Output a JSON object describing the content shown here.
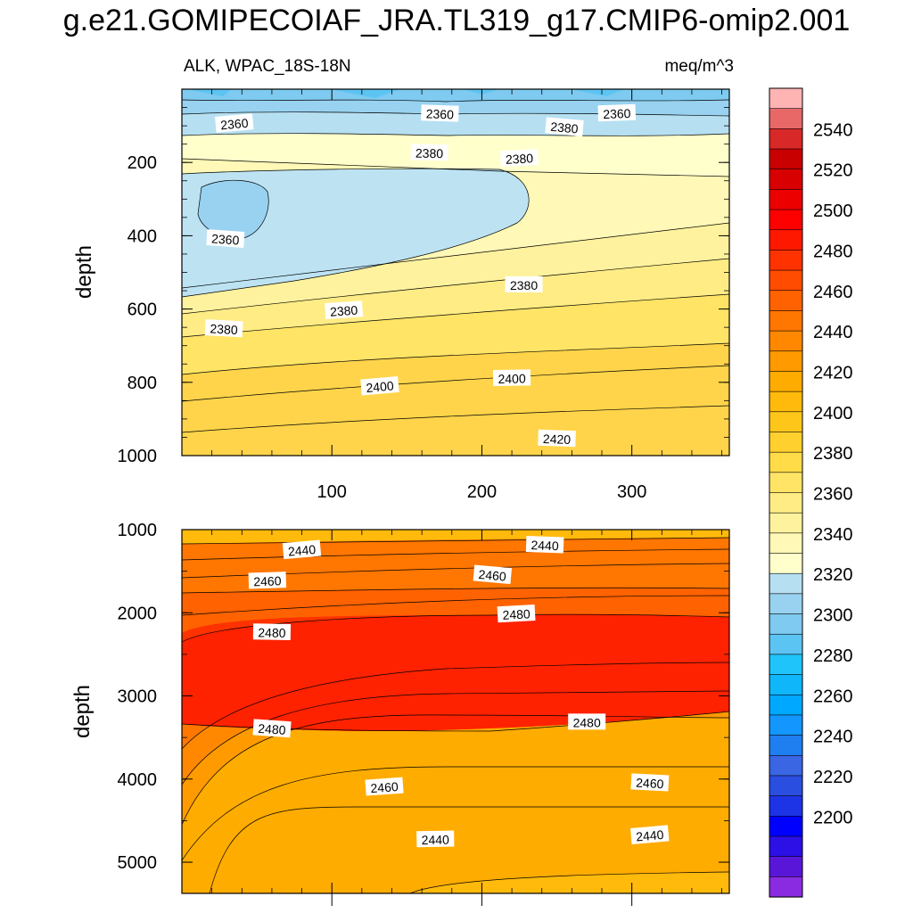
{
  "title": "g.e21.GOMIPECOIAF_JRA.TL319_g17.CMIP6-omip2.001",
  "subtitle_left": "ALK, WPAC_18S-18N",
  "subtitle_right": "meq/m^3",
  "chart_data": [
    {
      "type": "contour",
      "panel": "upper",
      "variable": "ALK",
      "region": "WPAC_18S-18N",
      "units": "meq/m^3",
      "xlabel": "",
      "ylabel": "depth",
      "xlim": [
        0,
        365
      ],
      "ylim": [
        0,
        1000
      ],
      "y_inverted": true,
      "x_ticks": [
        100,
        200,
        300
      ],
      "y_ticks": [
        200,
        400,
        600,
        800,
        1000
      ],
      "contour_labels": [
        {
          "value": 2360,
          "x": 35,
          "depth": 95
        },
        {
          "value": 2360,
          "x": 172,
          "depth": 68
        },
        {
          "value": 2360,
          "x": 290,
          "depth": 67
        },
        {
          "value": 2380,
          "x": 255,
          "depth": 105
        },
        {
          "value": 2380,
          "x": 165,
          "depth": 175
        },
        {
          "value": 2380,
          "x": 225,
          "depth": 190
        },
        {
          "value": 2360,
          "x": 29,
          "depth": 410
        },
        {
          "value": 2380,
          "x": 228,
          "depth": 535
        },
        {
          "value": 2380,
          "x": 108,
          "depth": 605
        },
        {
          "value": 2380,
          "x": 28,
          "depth": 655
        },
        {
          "value": 2400,
          "x": 220,
          "depth": 790
        },
        {
          "value": 2400,
          "x": 132,
          "depth": 812
        },
        {
          "value": 2420,
          "x": 250,
          "depth": 955
        }
      ]
    },
    {
      "type": "contour",
      "panel": "lower",
      "variable": "ALK",
      "units": "meq/m^3",
      "xlabel": "",
      "ylabel": "depth",
      "xlim": [
        0,
        365
      ],
      "ylim": [
        1000,
        5375
      ],
      "y_inverted": true,
      "y_ticks": [
        1000,
        2000,
        3000,
        4000,
        5000
      ],
      "contour_labels": [
        {
          "value": 2440,
          "x": 80,
          "depth": 1250
        },
        {
          "value": 2440,
          "x": 242,
          "depth": 1190
        },
        {
          "value": 2460,
          "x": 57,
          "depth": 1620
        },
        {
          "value": 2460,
          "x": 207,
          "depth": 1550
        },
        {
          "value": 2480,
          "x": 60,
          "depth": 2240
        },
        {
          "value": 2480,
          "x": 223,
          "depth": 2020
        },
        {
          "value": 2480,
          "x": 60,
          "depth": 3400
        },
        {
          "value": 2480,
          "x": 270,
          "depth": 3320
        },
        {
          "value": 2460,
          "x": 135,
          "depth": 4100
        },
        {
          "value": 2460,
          "x": 312,
          "depth": 4050
        },
        {
          "value": 2440,
          "x": 169,
          "depth": 4730
        },
        {
          "value": 2440,
          "x": 312,
          "depth": 4680
        }
      ]
    }
  ],
  "colorbar": {
    "labels": [
      2200,
      2220,
      2240,
      2260,
      2280,
      2300,
      2320,
      2340,
      2360,
      2380,
      2400,
      2420,
      2440,
      2460,
      2480,
      2500,
      2520,
      2540
    ],
    "colors": [
      "#8a2be2",
      "#5a16d8",
      "#2c10e6",
      "#0000ff",
      "#1c34e6",
      "#2a4ee0",
      "#3a66e4",
      "#1f7ef0",
      "#1496ff",
      "#00a8ff",
      "#10b6fa",
      "#1ec4fa",
      "#5cc4f2",
      "#7ecaf0",
      "#98d2f0",
      "#b6e0f2",
      "#ffffcc",
      "#fff8b6",
      "#fff29e",
      "#ffec84",
      "#ffe466",
      "#ffdc48",
      "#ffd02e",
      "#ffc61a",
      "#ffba0c",
      "#ffac00",
      "#ff9a00",
      "#ff8800",
      "#ff7600",
      "#ff6200",
      "#ff4c00",
      "#ff3200",
      "#ff1800",
      "#ff0000",
      "#ec0000",
      "#d80000",
      "#c80000",
      "#d82828",
      "#e86868",
      "#ffb4b4"
    ]
  }
}
